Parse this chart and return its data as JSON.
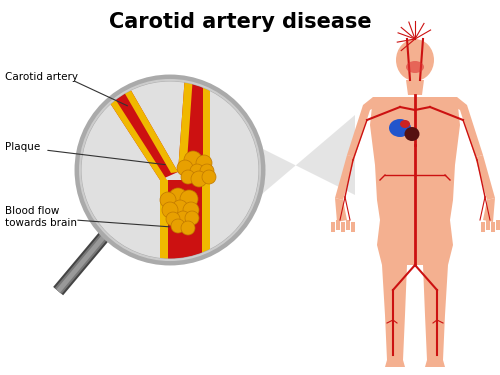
{
  "title": "Carotid artery disease",
  "title_fontsize": 15,
  "title_fontweight": "bold",
  "background_color": "#ffffff",
  "labels": {
    "carotid_artery": "Carotid artery",
    "plaque": "Plaque",
    "blood_flow": "Blood flow\ntowards brain"
  },
  "label_fontsize": 7.5,
  "colors": {
    "artery_red": "#cc1111",
    "artery_dark_red": "#aa0000",
    "artery_orange": "#e8a000",
    "artery_gold": "#f0b800",
    "lens_interior": "#e0e0e0",
    "lens_border": "#aaaaaa",
    "handle_dark": "#444444",
    "handle_mid": "#777777",
    "handle_light": "#999999",
    "body_fill": "#f4b090",
    "body_stroke": "#cc4422",
    "vein_color": "#cc1111",
    "heart_blue": "#2255cc",
    "heart_dark": "#551111",
    "heart_red": "#cc2222",
    "cone_fill": "#e0e0e0",
    "neck_highlight": "#dd3333"
  }
}
